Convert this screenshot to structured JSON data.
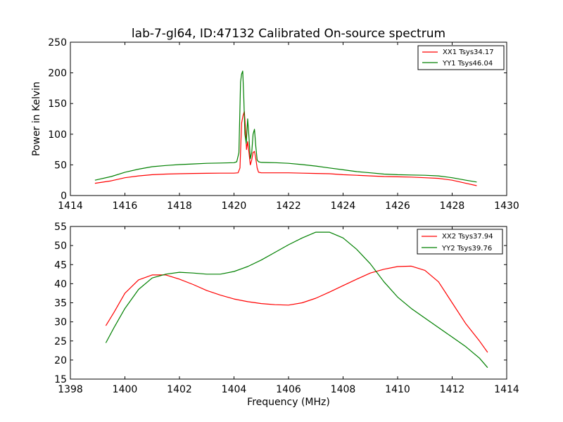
{
  "colors": {
    "xx": "#ff0000",
    "yy": "#008000"
  },
  "chart_data": [
    {
      "type": "line",
      "title": "lab-7-gl64, ID:47132 Calibrated On-source spectrum",
      "xlabel": "",
      "ylabel": "Power in Kelvin",
      "xlim": [
        1414,
        1430
      ],
      "ylim": [
        0,
        250
      ],
      "xticks": [
        1414,
        1416,
        1418,
        1420,
        1422,
        1424,
        1426,
        1428,
        1430
      ],
      "yticks": [
        0,
        50,
        100,
        150,
        200,
        250
      ],
      "grid": false,
      "legend": "top-right",
      "series": [
        {
          "name": "XX1 Tsys34.17",
          "color": "#ff0000",
          "x": [
            1414.9,
            1415.5,
            1416.0,
            1416.5,
            1417.0,
            1417.5,
            1418.0,
            1418.5,
            1419.0,
            1419.5,
            1420.0,
            1420.15,
            1420.22,
            1420.28,
            1420.33,
            1420.38,
            1420.42,
            1420.46,
            1420.5,
            1420.55,
            1420.6,
            1420.65,
            1420.7,
            1420.75,
            1420.8,
            1420.85,
            1420.9,
            1421.0,
            1421.5,
            1422.0,
            1422.5,
            1423.0,
            1423.5,
            1424.0,
            1424.5,
            1425.0,
            1425.5,
            1426.0,
            1426.5,
            1427.0,
            1427.5,
            1428.0,
            1428.5,
            1428.9
          ],
          "y": [
            20,
            24,
            29,
            32,
            34,
            35,
            35.5,
            36,
            36.2,
            36.5,
            36.5,
            37,
            45,
            118,
            130,
            137,
            110,
            75,
            88,
            70,
            50,
            58,
            70,
            72,
            60,
            45,
            38,
            37,
            37,
            37,
            36.5,
            36,
            35.5,
            34,
            33,
            32,
            31,
            30.5,
            30,
            29,
            28,
            25,
            20,
            16
          ]
        },
        {
          "name": "YY1 Tsys46.04",
          "color": "#008000",
          "x": [
            1414.9,
            1415.5,
            1416.0,
            1416.5,
            1417.0,
            1417.5,
            1418.0,
            1418.5,
            1419.0,
            1419.5,
            1420.0,
            1420.1,
            1420.18,
            1420.24,
            1420.28,
            1420.32,
            1420.36,
            1420.4,
            1420.45,
            1420.5,
            1420.55,
            1420.6,
            1420.65,
            1420.7,
            1420.75,
            1420.8,
            1420.85,
            1420.9,
            1421.0,
            1421.5,
            1422.0,
            1422.5,
            1423.0,
            1423.5,
            1424.0,
            1424.5,
            1425.0,
            1425.5,
            1426.0,
            1426.5,
            1427.0,
            1427.5,
            1428.0,
            1428.5,
            1428.9
          ],
          "y": [
            25,
            31,
            38,
            43,
            47,
            49,
            50.5,
            51.5,
            52.5,
            53,
            53.5,
            55,
            70,
            185,
            198,
            203,
            160,
            100,
            85,
            125,
            95,
            60,
            70,
            100,
            108,
            80,
            58,
            55,
            54,
            53.5,
            52.5,
            50.5,
            48,
            45,
            42,
            39,
            37,
            35,
            34,
            33.5,
            33,
            32,
            29,
            25,
            22
          ]
        }
      ]
    },
    {
      "type": "line",
      "title": "",
      "xlabel": "Frequency (MHz)",
      "ylabel": "",
      "xlim": [
        1398,
        1414
      ],
      "ylim": [
        15,
        55
      ],
      "xticks": [
        1398,
        1400,
        1402,
        1404,
        1406,
        1408,
        1410,
        1412,
        1414
      ],
      "yticks": [
        15,
        20,
        25,
        30,
        35,
        40,
        45,
        50,
        55
      ],
      "grid": false,
      "legend": "top-right",
      "series": [
        {
          "name": "XX2 Tsys37.94",
          "color": "#ff0000",
          "x": [
            1399.3,
            1399.6,
            1400.0,
            1400.5,
            1401.0,
            1401.5,
            1402.0,
            1402.5,
            1403.0,
            1403.5,
            1404.0,
            1404.5,
            1405.0,
            1405.5,
            1406.0,
            1406.5,
            1407.0,
            1407.5,
            1408.0,
            1408.5,
            1409.0,
            1409.5,
            1410.0,
            1410.5,
            1411.0,
            1411.5,
            1412.0,
            1412.5,
            1413.0,
            1413.3
          ],
          "y": [
            29,
            32.5,
            37.5,
            41,
            42.3,
            42.3,
            41.2,
            39.8,
            38.2,
            37,
            36,
            35.3,
            34.8,
            34.5,
            34.4,
            35,
            36.2,
            37.8,
            39.5,
            41.2,
            42.8,
            43.8,
            44.5,
            44.6,
            43.5,
            40.5,
            35,
            29.5,
            25,
            22
          ]
        },
        {
          "name": "YY2 Tsys39.76",
          "color": "#008000",
          "x": [
            1399.3,
            1399.6,
            1400.0,
            1400.5,
            1401.0,
            1401.5,
            1402.0,
            1402.5,
            1403.0,
            1403.5,
            1404.0,
            1404.5,
            1405.0,
            1405.5,
            1406.0,
            1406.5,
            1407.0,
            1407.5,
            1408.0,
            1408.5,
            1409.0,
            1409.5,
            1410.0,
            1410.5,
            1411.0,
            1411.5,
            1412.0,
            1412.5,
            1413.0,
            1413.3
          ],
          "y": [
            24.5,
            28.5,
            33.5,
            38.5,
            41.5,
            42.5,
            43,
            42.8,
            42.5,
            42.5,
            43.2,
            44.5,
            46.2,
            48.2,
            50.2,
            52,
            53.5,
            53.5,
            52,
            49,
            45.2,
            40.5,
            36.5,
            33.5,
            31,
            28.5,
            26,
            23.5,
            20.5,
            18
          ]
        }
      ]
    }
  ]
}
